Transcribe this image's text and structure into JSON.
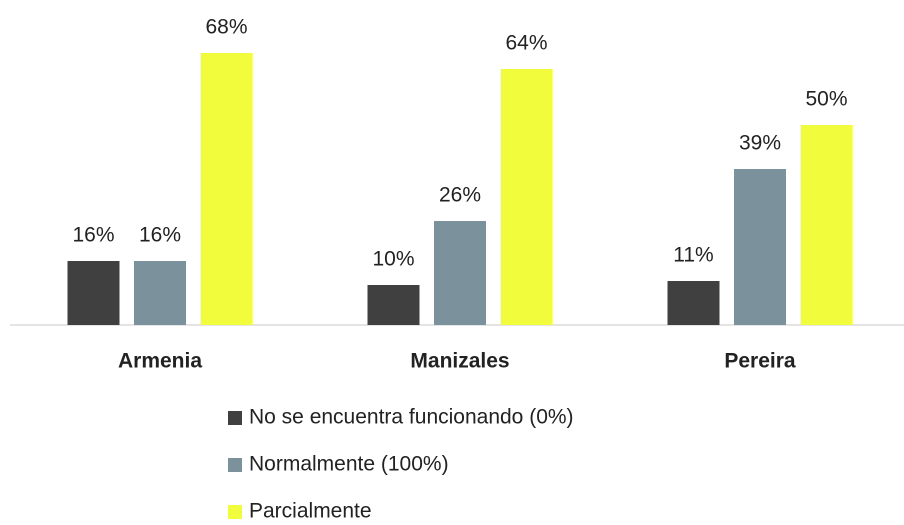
{
  "chart_data": {
    "type": "bar",
    "categories": [
      "Armenia",
      "Manizales",
      "Pereira"
    ],
    "series": [
      {
        "name": "No se encuentra funcionando (0%)",
        "color": "#404040",
        "values": [
          16,
          10,
          11
        ],
        "value_labels": [
          "16%",
          "10%",
          "11%"
        ]
      },
      {
        "name": "Normalmente (100%)",
        "color": "#7b919b",
        "values": [
          16,
          26,
          39
        ],
        "value_labels": [
          "16%",
          "26%",
          "39%"
        ]
      },
      {
        "name": "Parcialmente",
        "color": "#f0fc3c",
        "values": [
          68,
          64,
          50
        ],
        "value_labels": [
          "68%",
          "64%",
          "50%"
        ]
      }
    ],
    "legend": "bottom"
  }
}
